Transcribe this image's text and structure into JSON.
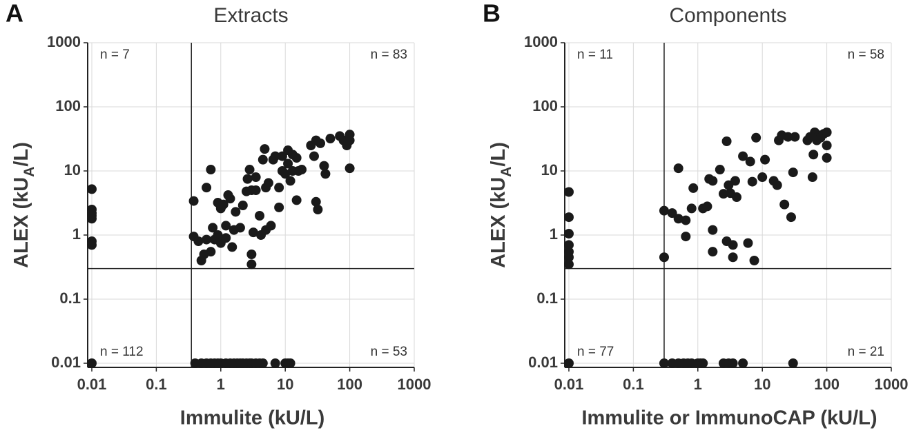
{
  "chart_data": [
    {
      "type": "scatter",
      "panel_label": "A",
      "title": "Extracts",
      "x_label": "Immulite (kU/L)",
      "y_label": [
        "ALEX (kU",
        "A",
        "/L)"
      ],
      "log_x": true,
      "log_y": true,
      "grid": true,
      "color": "#1a1a1a",
      "xlim": [
        0.01,
        1000
      ],
      "ylim": [
        0.01,
        1000
      ],
      "xticks": [
        0.01,
        0.1,
        1,
        10,
        100,
        1000
      ],
      "yticks": [
        0.01,
        0.1,
        1,
        10,
        100,
        1000
      ],
      "threshold_x": 0.35,
      "threshold_y": 0.3,
      "annotations": [
        "n = 7",
        "n = 83",
        "n = 112",
        "n = 53"
      ],
      "x": [
        0.01,
        0.01,
        0.01,
        0.01,
        0.01,
        0.01,
        0.01,
        0.01,
        0.4,
        0.5,
        0.6,
        0.7,
        0.8,
        0.9,
        1,
        1.2,
        1.4,
        1.6,
        1.8,
        2,
        2.2,
        2.5,
        2.8,
        3,
        3.5,
        4,
        4.5,
        7,
        10,
        11,
        12,
        0.38,
        0.38,
        0.45,
        0.5,
        0.55,
        0.6,
        0.6,
        0.7,
        0.7,
        0.75,
        0.8,
        0.9,
        0.9,
        1,
        1,
        1.1,
        1.2,
        1.2,
        1.3,
        1.4,
        1.5,
        1.6,
        1.7,
        2,
        2.2,
        2.5,
        2.6,
        2.8,
        3,
        3,
        3,
        3.2,
        3.5,
        3.5,
        4,
        4.2,
        4.5,
        4.8,
        5,
        5,
        5.5,
        6,
        6.5,
        7,
        8,
        8,
        9,
        9,
        10,
        11,
        11,
        12,
        13,
        13,
        15,
        15,
        16,
        18,
        25,
        28,
        30,
        30,
        32,
        35,
        40,
        42,
        50,
        70,
        80,
        90,
        100,
        100,
        100
      ],
      "y": [
        5.2,
        2.5,
        2.2,
        2,
        1.8,
        0.8,
        0.7,
        0.01,
        0.01,
        0.01,
        0.01,
        0.01,
        0.01,
        0.01,
        0.01,
        0.01,
        0.01,
        0.01,
        0.01,
        0.01,
        0.01,
        0.01,
        0.01,
        0.01,
        0.01,
        0.01,
        0.01,
        0.01,
        0.01,
        0.01,
        0.01,
        3.4,
        0.95,
        0.8,
        0.4,
        0.5,
        5.5,
        0.85,
        10.5,
        0.55,
        1.3,
        0.85,
        3.2,
        1,
        2.6,
        0.75,
        3,
        1.4,
        0.9,
        4.2,
        3.7,
        0.65,
        1.2,
        2.3,
        1.3,
        2.9,
        4.8,
        7.5,
        10.5,
        5,
        0.5,
        0.35,
        1.1,
        8,
        5,
        2,
        1,
        15,
        22,
        5.5,
        1.2,
        6.5,
        1.4,
        15,
        17,
        5.5,
        2.7,
        17,
        10,
        9,
        21,
        13,
        7,
        10,
        18,
        16,
        3.5,
        10,
        10.5,
        25,
        17,
        30,
        3.3,
        2.5,
        27,
        12,
        9,
        32,
        35,
        30,
        25,
        37,
        30,
        11
      ]
    },
    {
      "type": "scatter",
      "panel_label": "B",
      "title": "Components",
      "x_label": "Immulite or ImmunoCAP (kU/L)",
      "y_label": [
        "ALEX (kU",
        "A",
        "/L)"
      ],
      "log_x": true,
      "log_y": true,
      "grid": true,
      "color": "#1a1a1a",
      "xlim": [
        0.01,
        1000
      ],
      "ylim": [
        0.01,
        1000
      ],
      "xticks": [
        0.01,
        0.1,
        1,
        10,
        100,
        1000
      ],
      "yticks": [
        0.01,
        0.1,
        1,
        10,
        100,
        1000
      ],
      "threshold_x": 0.3,
      "threshold_y": 0.3,
      "annotations": [
        "n = 11",
        "n = 58",
        "n = 77",
        "n = 21"
      ],
      "x": [
        0.01,
        0.01,
        0.01,
        0.01,
        0.01,
        0.01,
        0.01,
        0.01,
        0.3,
        0.4,
        0.5,
        0.6,
        0.7,
        0.8,
        1,
        1.1,
        1.2,
        2.5,
        3,
        3.5,
        5,
        30,
        0.3,
        0.3,
        0.4,
        0.5,
        0.5,
        0.65,
        0.65,
        0.8,
        0.85,
        1.2,
        1.4,
        1.5,
        1.7,
        1.7,
        1.7,
        2.2,
        2.5,
        2.8,
        2.8,
        3,
        3.2,
        3.5,
        3.5,
        3.8,
        4,
        5,
        6,
        6.5,
        7,
        7.5,
        8,
        10,
        11,
        15,
        17,
        18,
        20,
        22,
        25,
        28,
        30,
        32,
        50,
        55,
        60,
        62,
        65,
        70,
        75,
        80,
        90,
        100,
        100,
        100
      ],
      "y": [
        4.7,
        1.9,
        1.05,
        0.7,
        0.55,
        0.45,
        0.35,
        0.01,
        0.01,
        0.01,
        0.01,
        0.01,
        0.01,
        0.01,
        0.01,
        0.01,
        0.01,
        0.01,
        0.01,
        0.01,
        0.01,
        0.01,
        0.45,
        2.4,
        2.2,
        11,
        1.8,
        1.7,
        0.95,
        2.6,
        5.4,
        2.6,
        2.8,
        7.5,
        7,
        1.2,
        0.55,
        10.5,
        4.4,
        29,
        0.8,
        6,
        4.5,
        0.7,
        0.45,
        7,
        3.9,
        17,
        0.75,
        14,
        6.8,
        0.4,
        33,
        8,
        15,
        7,
        6,
        30,
        36,
        3,
        34,
        1.9,
        9.5,
        34,
        30,
        34,
        8,
        18,
        40,
        30,
        36,
        33,
        38,
        40,
        25,
        16
      ]
    }
  ]
}
